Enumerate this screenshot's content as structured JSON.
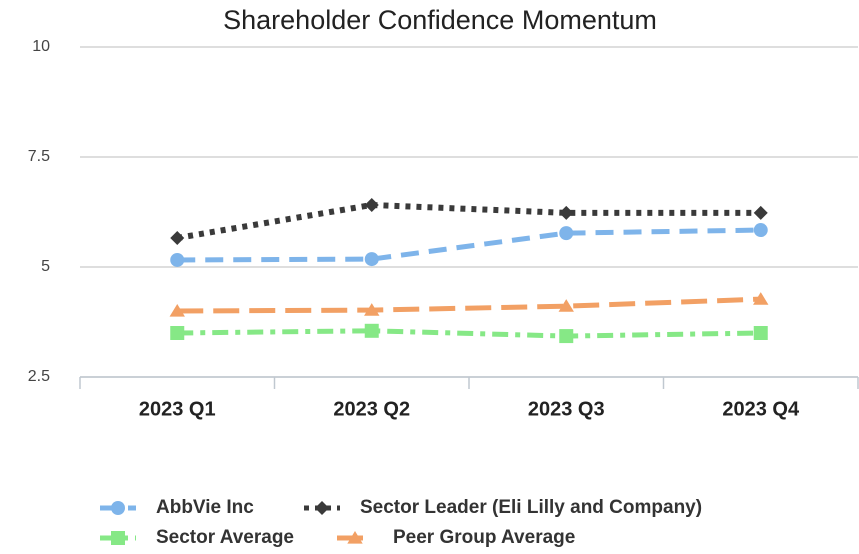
{
  "chart_data": {
    "type": "line",
    "title": "Shareholder Confidence Momentum",
    "categories": [
      "2023 Q1",
      "2023 Q2",
      "2023 Q3",
      "2023 Q4"
    ],
    "ylim": [
      2.5,
      10
    ],
    "yticks": [
      2.5,
      5,
      7.5,
      10
    ],
    "grid": true,
    "legend": "bottom",
    "series": [
      {
        "name": "AbbVie Inc",
        "color": "#7eb4ea",
        "marker": "circle",
        "dash": "dashed",
        "values": [
          5.16,
          5.18,
          5.77,
          5.84
        ]
      },
      {
        "name": "Sector Leader (Eli Lilly and Company)",
        "color": "#3a3a3a",
        "marker": "diamond",
        "dash": "dotted",
        "values": [
          5.66,
          6.41,
          6.23,
          6.23
        ]
      },
      {
        "name": "Sector Average",
        "color": "#86e886",
        "marker": "square",
        "dash": "dashdot",
        "values": [
          3.5,
          3.55,
          3.43,
          3.5
        ]
      },
      {
        "name": "Peer Group Average",
        "color": "#f2a064",
        "marker": "triangle",
        "dash": "longdash",
        "values": [
          4.0,
          4.02,
          4.11,
          4.27
        ]
      }
    ]
  }
}
